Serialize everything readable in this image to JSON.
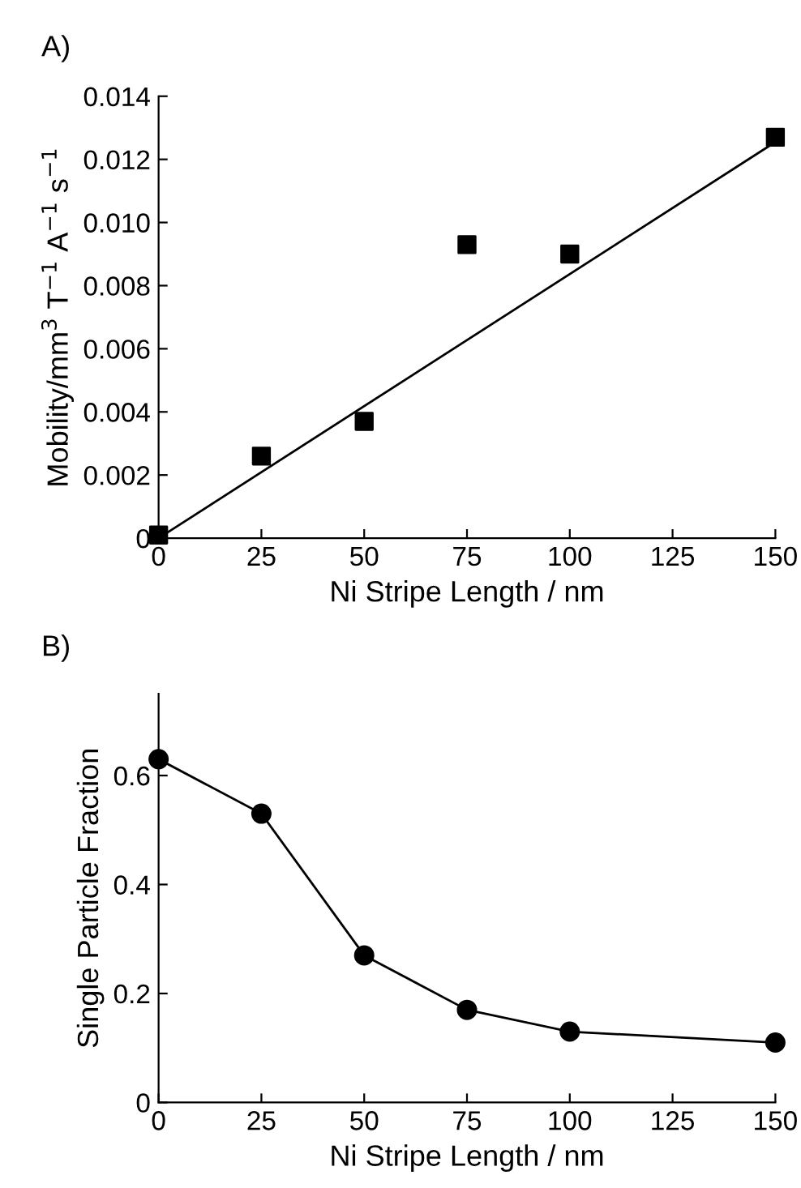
{
  "chart_data": [
    {
      "type": "scatter",
      "title": "A)",
      "xlabel": "Ni Stripe Length / nm",
      "ylabel": "Mobility/mm$^{3}$ T$^{−1}$ A$^{−1}$ s$^{−1}$",
      "marker": "square",
      "grid": false,
      "legend": false,
      "xlim": [
        0,
        150
      ],
      "ylim": [
        0,
        0.014
      ],
      "xticks": [
        0,
        25,
        50,
        75,
        100,
        125,
        150
      ],
      "yticks": [
        {
          "value": 0,
          "label": "0"
        },
        {
          "value": 0.002,
          "label": "0.002"
        },
        {
          "value": 0.004,
          "label": "0.004"
        },
        {
          "value": 0.006,
          "label": "0.006"
        },
        {
          "value": 0.008,
          "label": "0.008"
        },
        {
          "value": 0.01,
          "label": "0.010"
        },
        {
          "value": 0.012,
          "label": "0.012"
        },
        {
          "value": 0.014,
          "label": "0.014"
        }
      ],
      "series": [
        {
          "type": "scatter",
          "color": "#000000",
          "x": [
            0,
            25,
            50,
            75,
            100,
            150
          ],
          "values": [
            0.0001,
            0.0026,
            0.0037,
            0.0093,
            0.009,
            0.0127
          ]
        },
        {
          "type": "line",
          "marker": "none",
          "color": "#000000",
          "x": [
            0,
            150
          ],
          "values": [
            0,
            0.01255
          ]
        }
      ]
    },
    {
      "type": "line",
      "title": "B)",
      "xlabel": "Ni Stripe Length / nm",
      "ylabel": "Single Particle Fraction",
      "marker": "circle",
      "line_style": "solid",
      "grid": false,
      "legend": false,
      "xlim": [
        0,
        150
      ],
      "ylim": [
        0,
        0.75
      ],
      "xticks": [
        0,
        25,
        50,
        75,
        100,
        125,
        150
      ],
      "yticks": [
        0,
        0.2,
        0.4,
        0.6
      ],
      "series": [
        {
          "color": "#000000",
          "x": [
            0,
            25,
            50,
            75,
            100,
            150
          ],
          "values": [
            0.63,
            0.53,
            0.27,
            0.17,
            0.13,
            0.11
          ]
        }
      ]
    }
  ]
}
